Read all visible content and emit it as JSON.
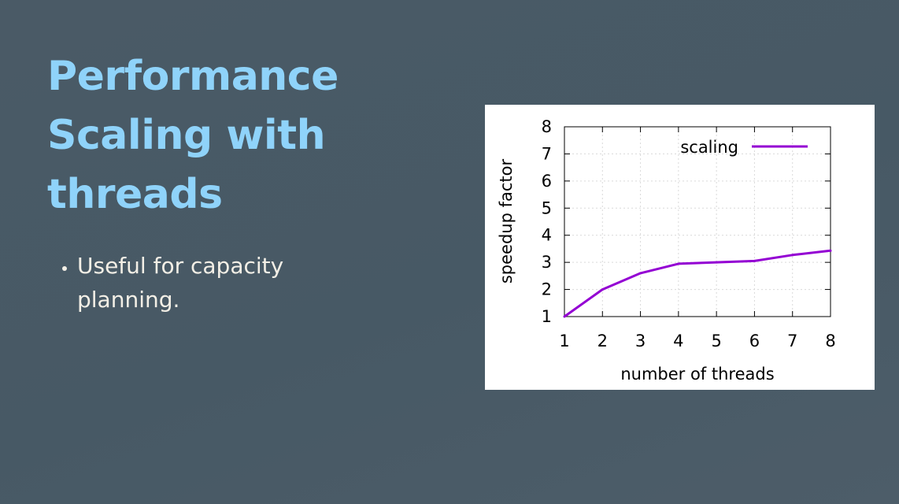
{
  "slide": {
    "title": "Performance Scaling with threads",
    "bullets": [
      "Useful for capacity planning."
    ]
  },
  "chart_data": {
    "type": "line",
    "title": "",
    "xlabel": "number of threads",
    "ylabel": "speedup factor",
    "xlim": [
      1,
      8
    ],
    "ylim": [
      1,
      8
    ],
    "xticks": [
      1,
      2,
      3,
      4,
      5,
      6,
      7,
      8
    ],
    "yticks": [
      1,
      2,
      3,
      4,
      5,
      6,
      7,
      8
    ],
    "grid": true,
    "legend_position": "top-right",
    "series": [
      {
        "name": "scaling",
        "color": "#9400d3",
        "x": [
          1,
          2,
          3,
          4,
          5,
          6,
          7,
          8
        ],
        "y": [
          1.0,
          2.0,
          2.6,
          2.95,
          3.0,
          3.05,
          3.27,
          3.43
        ]
      }
    ]
  }
}
